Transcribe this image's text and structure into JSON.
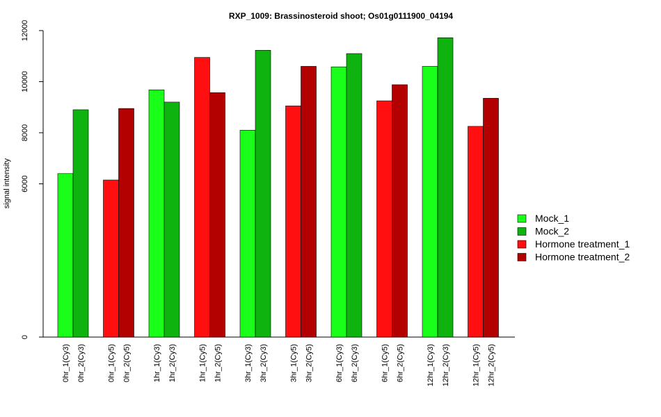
{
  "chart_data": {
    "type": "bar",
    "title": "RXP_1009: Brassinosteroid shoot; Os01g0111900_04194",
    "ylabel": "signal intensity",
    "xlabel": "",
    "ylim": [
      0,
      12000
    ],
    "yticks": [
      0,
      6000,
      8000,
      10000,
      12000
    ],
    "ytick_labels": [
      "0",
      "6000",
      "8000",
      "10000",
      "12000"
    ],
    "grid": false,
    "legend_position": "right",
    "legend": [
      {
        "name": "Mock_1",
        "color": "#1aff1a"
      },
      {
        "name": "Mock_2",
        "color": "#0fb30f"
      },
      {
        "name": "Hormone treatment_1",
        "color": "#ff0f0f"
      },
      {
        "name": "Hormone treatment_2",
        "color": "#b30000"
      }
    ],
    "groups": [
      {
        "bars": [
          {
            "label": "0hr_1(Cy3)",
            "value": 6400,
            "color": "#1aff1a"
          },
          {
            "label": "0hr_2(Cy3)",
            "value": 8900,
            "color": "#0fb30f"
          }
        ]
      },
      {
        "bars": [
          {
            "label": "0hr_1(Cy5)",
            "value": 6150,
            "color": "#ff0f0f"
          },
          {
            "label": "0hr_2(Cy5)",
            "value": 8950,
            "color": "#b30000"
          }
        ]
      },
      {
        "bars": [
          {
            "label": "1hr_1(Cy3)",
            "value": 9680,
            "color": "#1aff1a"
          },
          {
            "label": "1hr_2(Cy3)",
            "value": 9200,
            "color": "#0fb30f"
          }
        ]
      },
      {
        "bars": [
          {
            "label": "1hr_1(Cy5)",
            "value": 10950,
            "color": "#ff0f0f"
          },
          {
            "label": "1hr_2(Cy5)",
            "value": 9570,
            "color": "#b30000"
          }
        ]
      },
      {
        "bars": [
          {
            "label": "3hr_1(Cy3)",
            "value": 8100,
            "color": "#1aff1a"
          },
          {
            "label": "3hr_2(Cy3)",
            "value": 11230,
            "color": "#0fb30f"
          }
        ]
      },
      {
        "bars": [
          {
            "label": "3hr_1(Cy5)",
            "value": 9050,
            "color": "#ff0f0f"
          },
          {
            "label": "3hr_2(Cy5)",
            "value": 10600,
            "color": "#b30000"
          }
        ]
      },
      {
        "bars": [
          {
            "label": "6hr_1(Cy3)",
            "value": 10580,
            "color": "#1aff1a"
          },
          {
            "label": "6hr_2(Cy3)",
            "value": 11100,
            "color": "#0fb30f"
          }
        ]
      },
      {
        "bars": [
          {
            "label": "6hr_1(Cy5)",
            "value": 9250,
            "color": "#ff0f0f"
          },
          {
            "label": "6hr_2(Cy5)",
            "value": 9880,
            "color": "#b30000"
          }
        ]
      },
      {
        "bars": [
          {
            "label": "12hr_1(Cy3)",
            "value": 10600,
            "color": "#1aff1a"
          },
          {
            "label": "12hr_2(Cy3)",
            "value": 11720,
            "color": "#0fb30f"
          }
        ]
      },
      {
        "bars": [
          {
            "label": "12hr_1(Cy5)",
            "value": 8250,
            "color": "#ff0f0f"
          },
          {
            "label": "12hr_2(Cy5)",
            "value": 9350,
            "color": "#b30000"
          }
        ]
      }
    ]
  }
}
